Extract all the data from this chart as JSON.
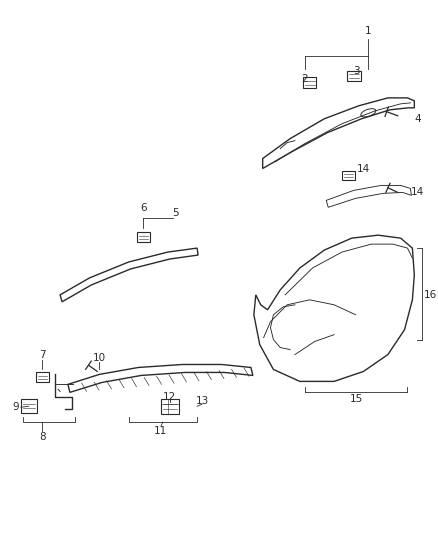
{
  "bg_color": "#ffffff",
  "line_color": "#2a2a2a",
  "lw_main": 1.0,
  "lw_thin": 0.65,
  "lw_leader": 0.6,
  "label_fontsize": 7.5,
  "figw": 4.38,
  "figh": 5.33,
  "dpi": 100
}
